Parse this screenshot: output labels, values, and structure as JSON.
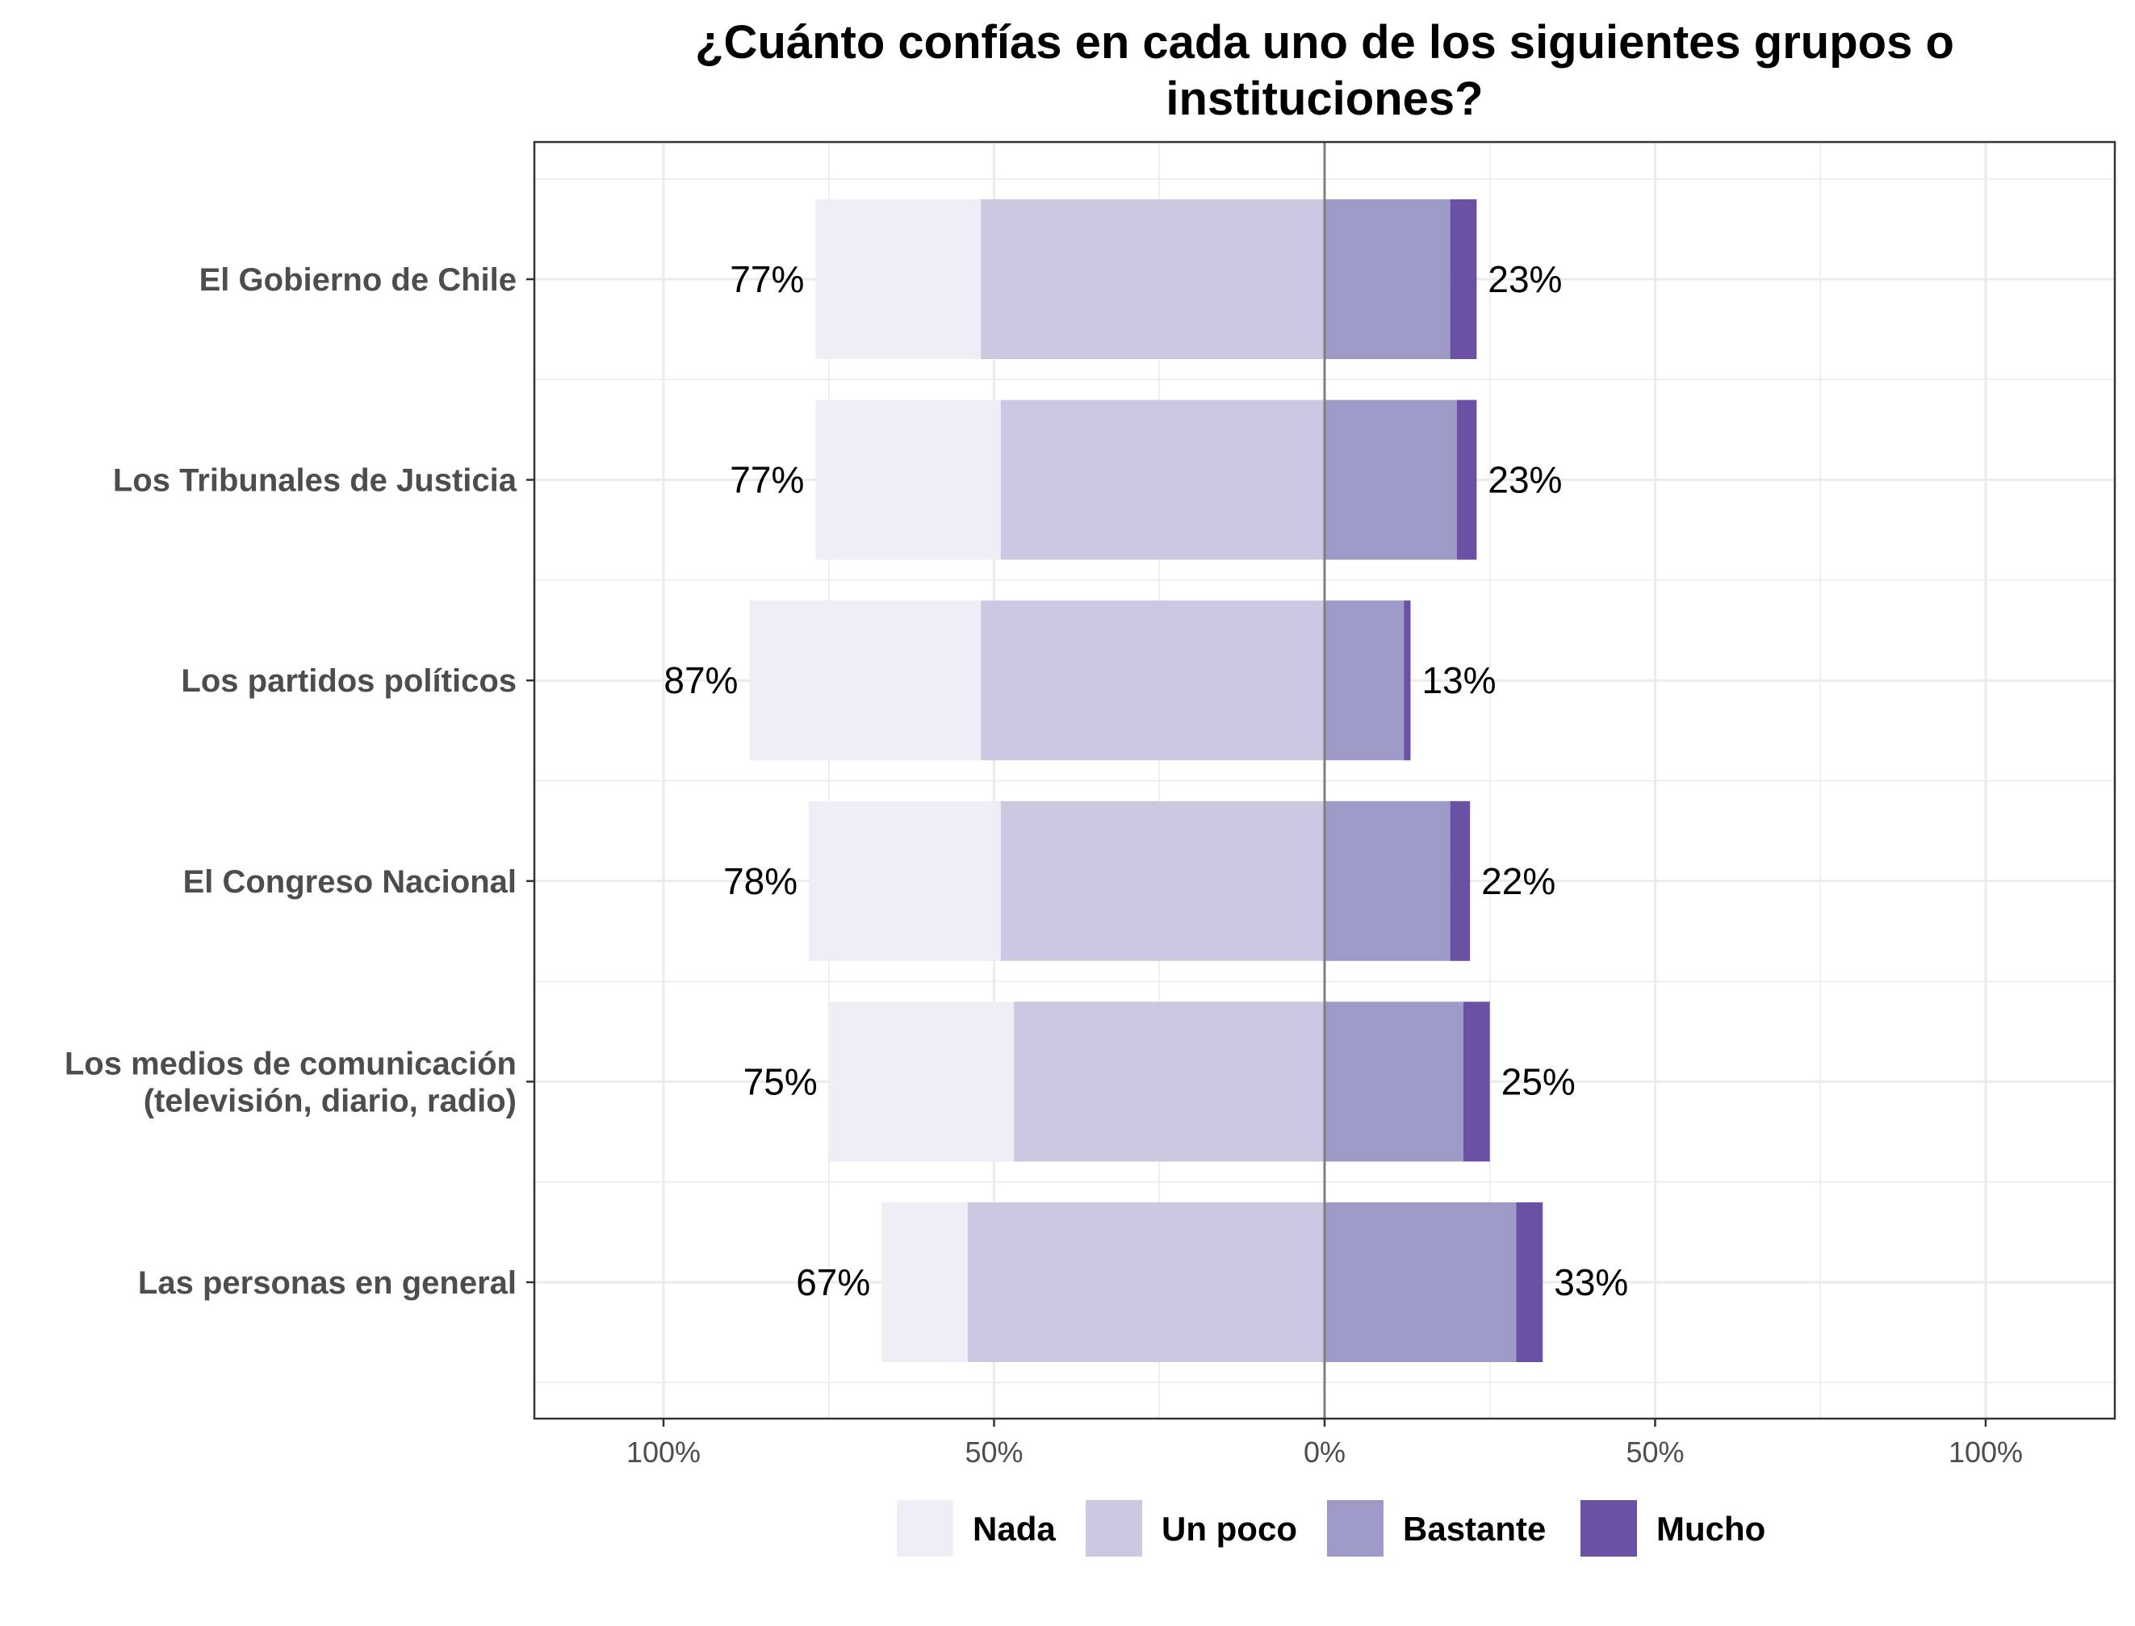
{
  "chart_data": {
    "type": "bar",
    "orientation": "horizontal-diverging",
    "title": "¿Cuánto confías en cada uno de los siguientes grupos o\ninstituciones?",
    "categories": [
      "El Gobierno de Chile",
      "Los Tribunales de Justicia",
      "Los partidos políticos",
      "El Congreso Nacional",
      "Los medios de comunicación\n(televisión, diario, radio)",
      "Las personas en general"
    ],
    "series": [
      {
        "name": "Nada",
        "side": "negative",
        "color": "#efedf5",
        "values": [
          25,
          28,
          35,
          29,
          28,
          13
        ]
      },
      {
        "name": "Un poco",
        "side": "negative",
        "color": "#cbc9e2",
        "values": [
          52,
          49,
          52,
          49,
          47,
          54
        ]
      },
      {
        "name": "Bastante",
        "side": "positive",
        "color": "#9e9ac8",
        "values": [
          19,
          20,
          12,
          19,
          21,
          29
        ]
      },
      {
        "name": "Mucho",
        "side": "positive",
        "color": "#6a51a3",
        "values": [
          4,
          3,
          1,
          3,
          4,
          4
        ]
      }
    ],
    "negative_totals": [
      "77%",
      "77%",
      "87%",
      "78%",
      "75%",
      "67%"
    ],
    "positive_totals": [
      "23%",
      "23%",
      "13%",
      "22%",
      "25%",
      "33%"
    ],
    "xlim": [
      -120,
      120
    ],
    "xticks": [
      -100,
      -50,
      0,
      50,
      100
    ],
    "xtick_labels": [
      "100%",
      "50%",
      "0%",
      "50%",
      "100%"
    ],
    "grid": true,
    "legend_position": "bottom"
  }
}
